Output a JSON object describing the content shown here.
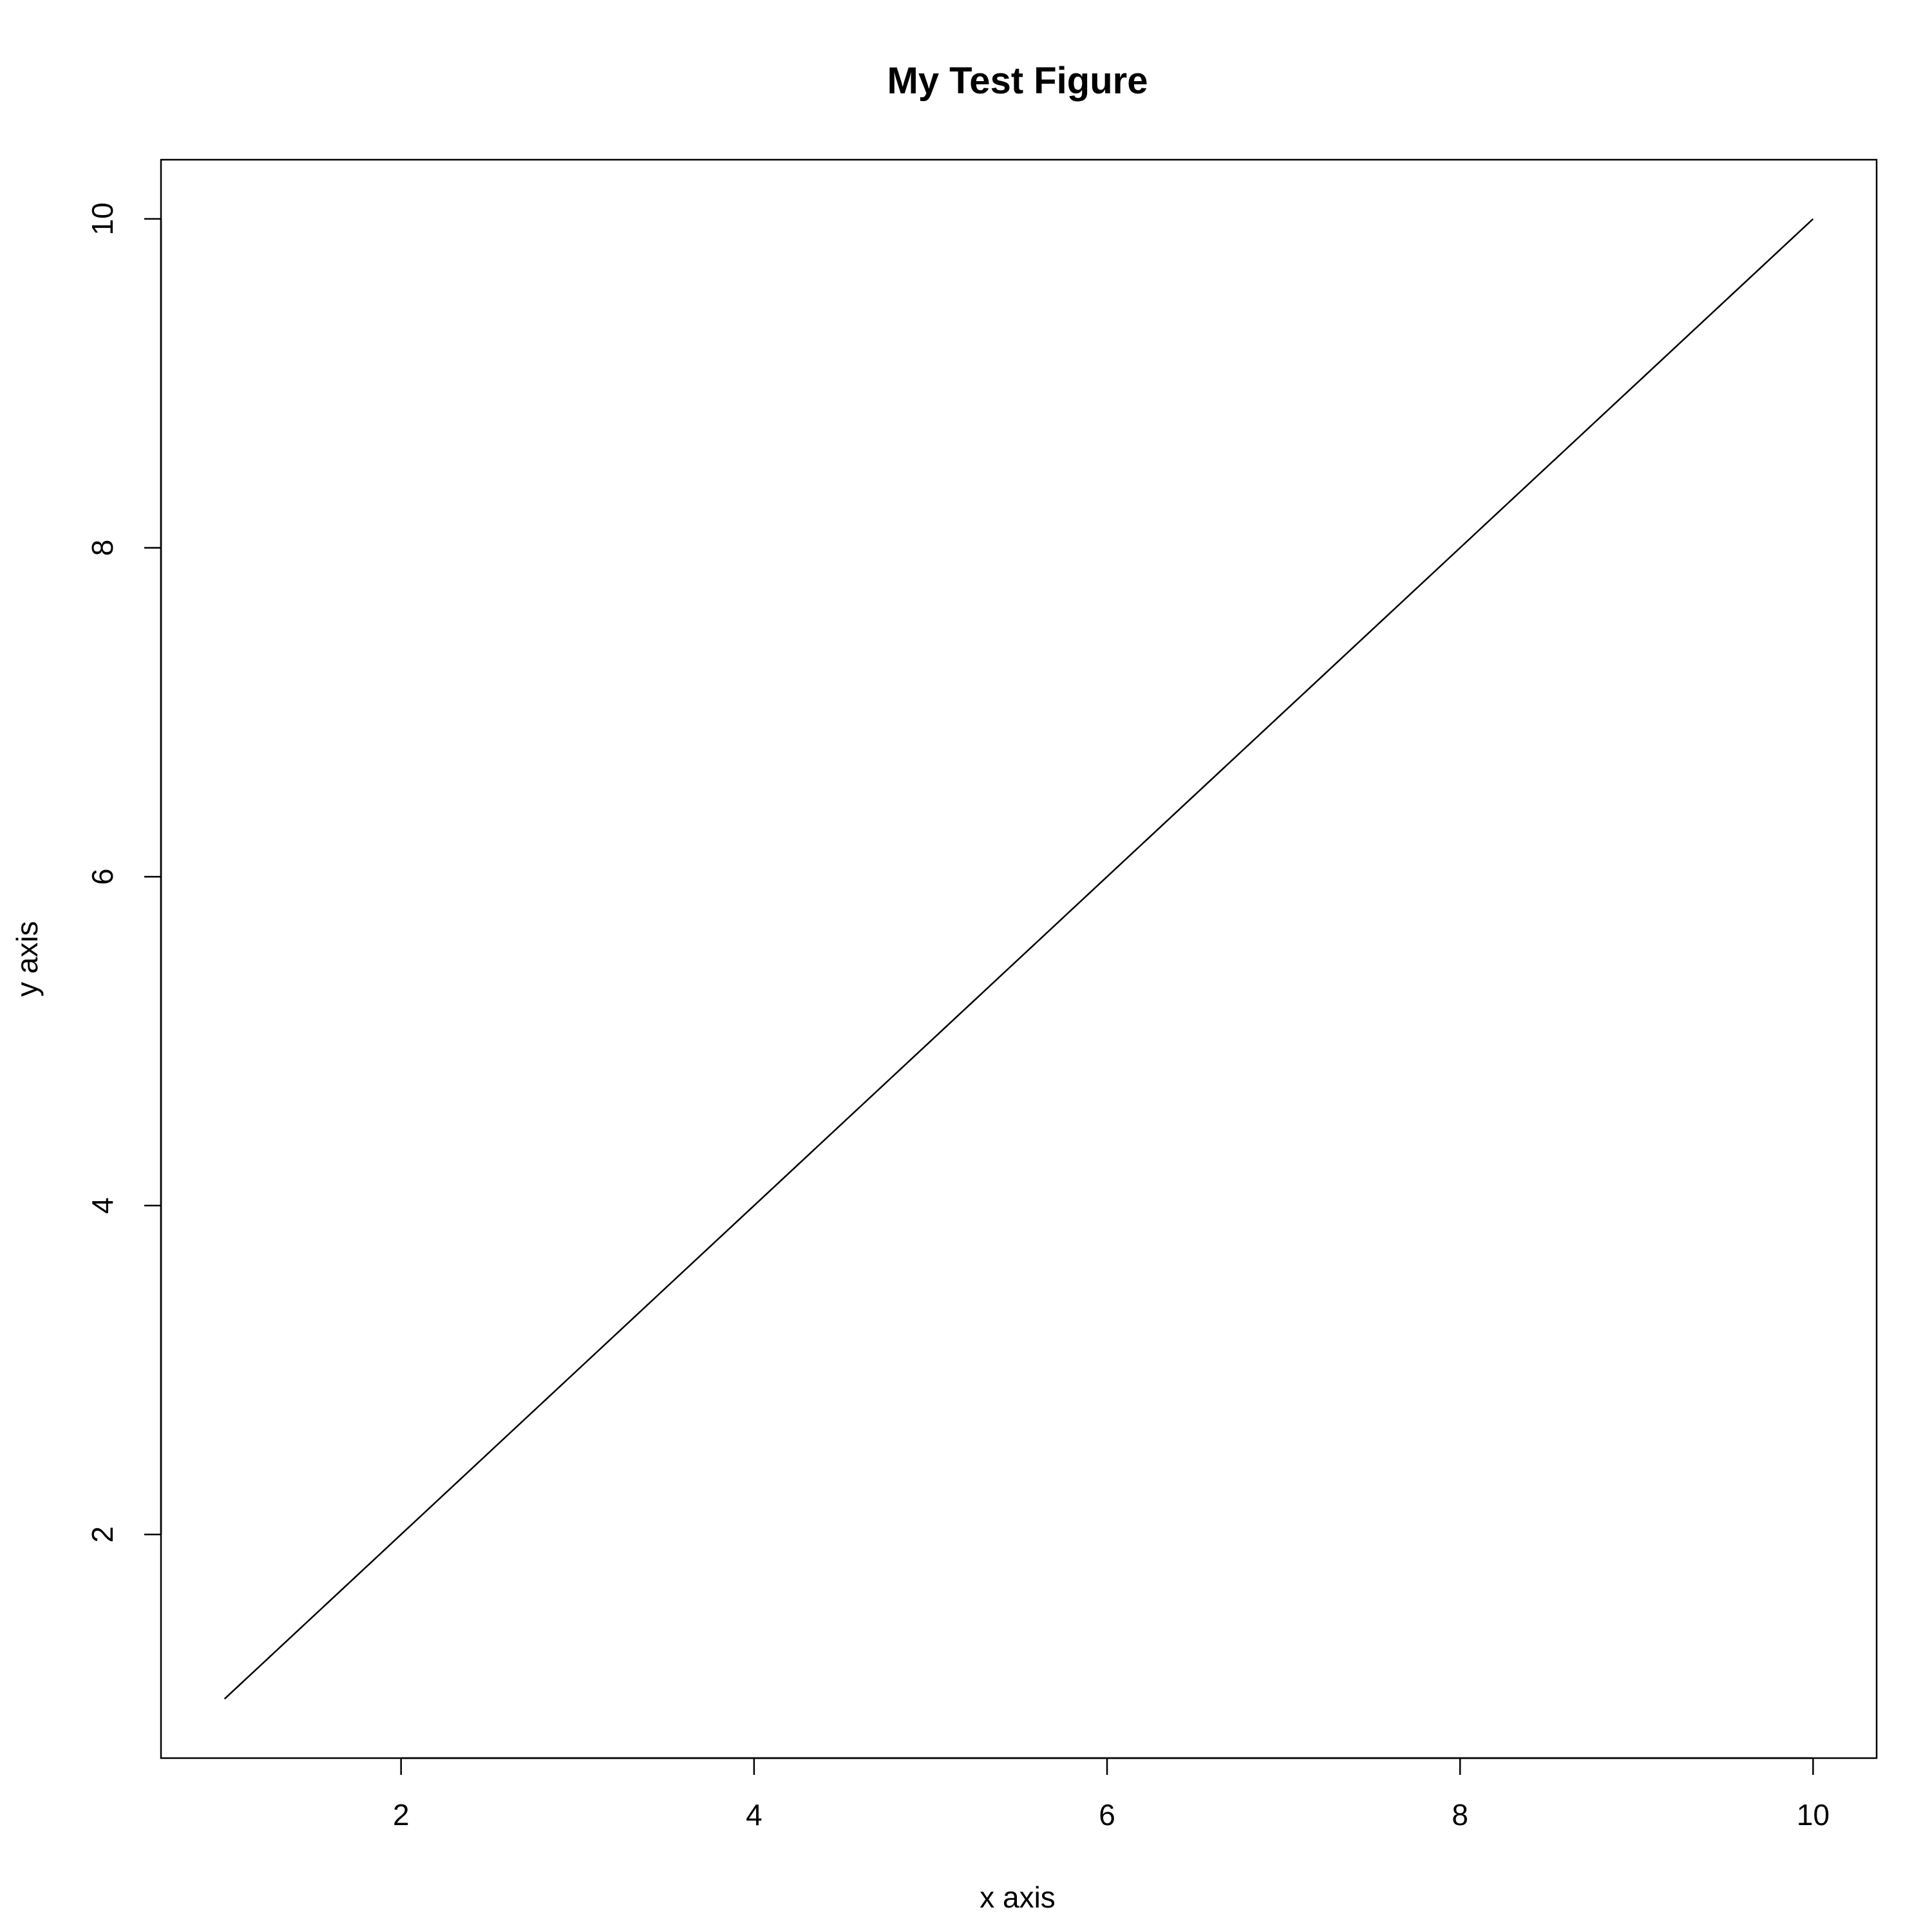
{
  "chart_data": {
    "type": "line",
    "title": "My Test Figure",
    "xlabel": "x axis",
    "ylabel": "y axis",
    "x": [
      1,
      2,
      3,
      4,
      5,
      6,
      7,
      8,
      9,
      10
    ],
    "series": [
      {
        "values": [
          1,
          2,
          3,
          4,
          5,
          6,
          7,
          8,
          9,
          10
        ],
        "color": "#000000"
      }
    ],
    "xlim": [
      0.64,
      10.36
    ],
    "ylim": [
      0.64,
      10.36
    ],
    "xticks": [
      2,
      4,
      6,
      8,
      10
    ],
    "yticks": [
      2,
      4,
      6,
      8,
      10
    ],
    "grid": false,
    "legend": "none"
  }
}
